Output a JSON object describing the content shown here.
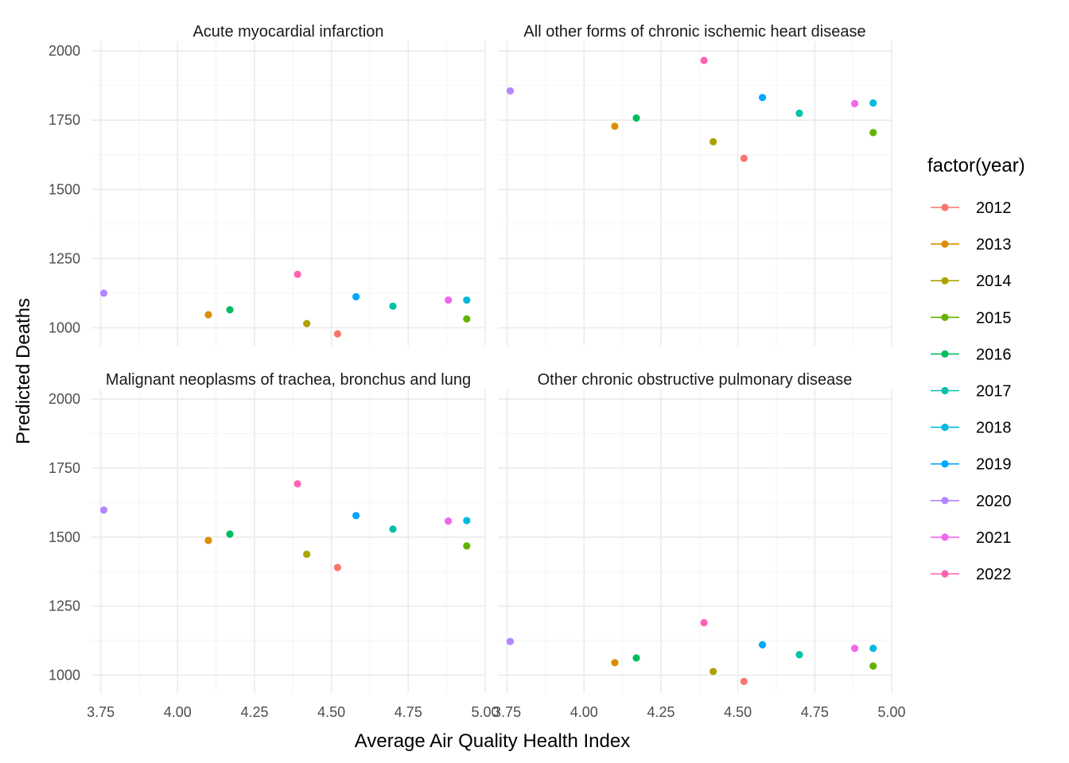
{
  "chart_data": {
    "type": "scatter",
    "xlabel": "Average Air Quality Health Index",
    "ylabel": "Predicted Deaths",
    "xlim": [
      3.72,
      5.0
    ],
    "ylim": [
      935,
      2035
    ],
    "x_ticks": [
      "3.75",
      "4.00",
      "4.25",
      "4.50",
      "4.75",
      "5.00"
    ],
    "x_tick_values": [
      3.75,
      4.0,
      4.25,
      4.5,
      4.75,
      5.0
    ],
    "y_ticks": [
      "1000",
      "1250",
      "1500",
      "1750",
      "2000"
    ],
    "y_tick_values": [
      1000,
      1250,
      1500,
      1750,
      2000
    ],
    "grid": true,
    "legend": {
      "title": "factor(year)",
      "placement": "right",
      "entries": [
        "2012",
        "2013",
        "2014",
        "2015",
        "2016",
        "2017",
        "2018",
        "2019",
        "2020",
        "2021",
        "2022"
      ],
      "colors": [
        "#F8766D",
        "#DB8E00",
        "#AEA200",
        "#64B200",
        "#00BD5C",
        "#00C1A7",
        "#00BADE",
        "#00A6FF",
        "#B385FF",
        "#EF67EB",
        "#FF63B6"
      ]
    },
    "x_by_year": [
      4.52,
      4.1,
      4.42,
      4.94,
      4.17,
      4.7,
      4.94,
      4.58,
      3.76,
      4.88,
      4.39
    ],
    "panels": [
      {
        "title": "Acute myocardial infarction",
        "values": [
          978,
          1047,
          1015,
          1032,
          1065,
          1078,
          1100,
          1112,
          1125,
          1100,
          1193
        ]
      },
      {
        "title": "All other forms of chronic ischemic heart disease",
        "values": [
          1612,
          1728,
          1672,
          1705,
          1758,
          1775,
          1812,
          1832,
          1856,
          1810,
          1966
        ]
      },
      {
        "title": "Malignant neoplasms of trachea, bronchus and lung",
        "values": [
          1390,
          1488,
          1438,
          1468,
          1511,
          1529,
          1560,
          1578,
          1598,
          1558,
          1693
        ]
      },
      {
        "title": "Other chronic obstructive pulmonary disease",
        "values": [
          977,
          1045,
          1013,
          1033,
          1062,
          1074,
          1097,
          1110,
          1122,
          1097,
          1190
        ]
      }
    ]
  }
}
